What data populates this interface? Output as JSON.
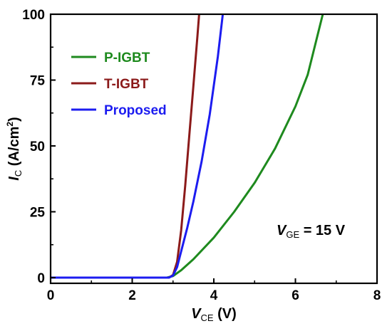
{
  "chart_data": {
    "type": "line",
    "xlim": [
      0,
      8
    ],
    "ylim": [
      0,
      100
    ],
    "xticks": [
      0,
      2,
      4,
      6,
      8
    ],
    "yticks": [
      0,
      25,
      50,
      75,
      100
    ],
    "xtick_labels": [
      "0",
      "2",
      "4",
      "6",
      "8"
    ],
    "ytick_labels": [
      "0",
      "25",
      "50",
      "75",
      "100"
    ],
    "xlabel": {
      "main": "V",
      "sub": "CE",
      "unit": " (V)"
    },
    "ylabel": {
      "main": "I",
      "sub": "C",
      "unit": " (A/cm",
      "sup": "2",
      "close": ")"
    },
    "annotation": {
      "main": "V",
      "sub": "GE",
      "rest": " = 15 V"
    },
    "grid": false,
    "legend_position": "top-left",
    "series": [
      {
        "name": "P-IGBT",
        "color": "#1e8a1e",
        "points": [
          [
            0,
            0
          ],
          [
            2.85,
            0
          ],
          [
            3.0,
            0.6
          ],
          [
            3.2,
            2.8
          ],
          [
            3.5,
            7.0
          ],
          [
            4.0,
            15.2
          ],
          [
            4.5,
            25.0
          ],
          [
            5.0,
            36.0
          ],
          [
            5.5,
            49.0
          ],
          [
            6.0,
            65.0
          ],
          [
            6.3,
            77.0
          ],
          [
            6.67,
            100.0
          ]
        ]
      },
      {
        "name": "T-IGBT",
        "color": "#8b1a1a",
        "points": [
          [
            0,
            0
          ],
          [
            2.9,
            0
          ],
          [
            3.0,
            1.0
          ],
          [
            3.1,
            6.0
          ],
          [
            3.2,
            18.0
          ],
          [
            3.3,
            35.0
          ],
          [
            3.4,
            54.0
          ],
          [
            3.5,
            73.0
          ],
          [
            3.6,
            92.0
          ],
          [
            3.64,
            100.0
          ]
        ]
      },
      {
        "name": "Proposed",
        "color": "#1c1cf0",
        "points": [
          [
            0,
            0
          ],
          [
            2.9,
            0
          ],
          [
            3.0,
            0.8
          ],
          [
            3.1,
            4.0
          ],
          [
            3.2,
            10.0
          ],
          [
            3.35,
            19.0
          ],
          [
            3.5,
            29.0
          ],
          [
            3.7,
            44.0
          ],
          [
            3.9,
            62.0
          ],
          [
            4.1,
            84.0
          ],
          [
            4.22,
            100.0
          ]
        ]
      }
    ]
  }
}
